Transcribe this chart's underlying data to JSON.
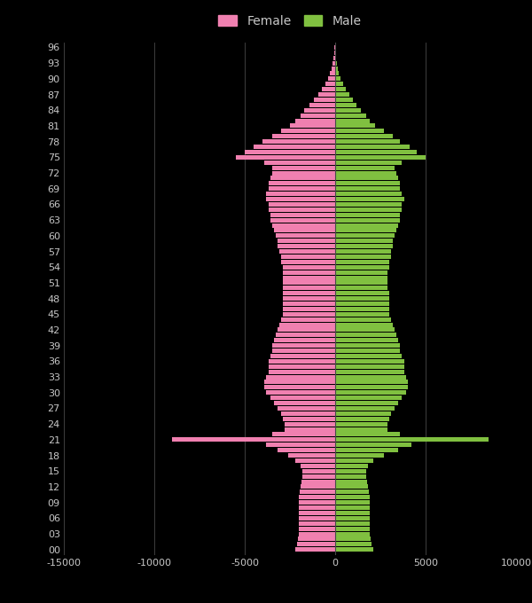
{
  "ages": [
    0,
    1,
    2,
    3,
    4,
    5,
    6,
    7,
    8,
    9,
    10,
    11,
    12,
    13,
    14,
    15,
    16,
    17,
    18,
    19,
    20,
    21,
    22,
    23,
    24,
    25,
    26,
    27,
    28,
    29,
    30,
    31,
    32,
    33,
    34,
    35,
    36,
    37,
    38,
    39,
    40,
    41,
    42,
    43,
    44,
    45,
    46,
    47,
    48,
    49,
    50,
    51,
    52,
    53,
    54,
    55,
    56,
    57,
    58,
    59,
    60,
    61,
    62,
    63,
    64,
    65,
    66,
    67,
    68,
    69,
    70,
    71,
    72,
    73,
    74,
    75,
    76,
    77,
    78,
    79,
    80,
    81,
    82,
    83,
    84,
    85,
    86,
    87,
    88,
    89,
    90,
    91,
    92,
    93,
    94,
    95,
    96
  ],
  "female": [
    -2200,
    -2100,
    -2050,
    -2000,
    -2000,
    -2000,
    -2000,
    -2000,
    -2000,
    -2000,
    -2000,
    -1950,
    -1900,
    -1850,
    -1800,
    -1800,
    -1900,
    -2200,
    -2600,
    -3200,
    -3800,
    -9000,
    -3500,
    -2800,
    -2800,
    -2900,
    -3000,
    -3200,
    -3400,
    -3600,
    -3800,
    -3900,
    -3900,
    -3800,
    -3700,
    -3700,
    -3700,
    -3600,
    -3500,
    -3500,
    -3400,
    -3300,
    -3200,
    -3100,
    -3000,
    -2900,
    -2900,
    -2900,
    -2900,
    -2900,
    -2900,
    -2900,
    -2900,
    -2900,
    -2900,
    -3000,
    -3000,
    -3100,
    -3200,
    -3200,
    -3300,
    -3400,
    -3500,
    -3600,
    -3600,
    -3700,
    -3700,
    -3800,
    -3800,
    -3700,
    -3700,
    -3600,
    -3500,
    -3500,
    -3900,
    -5500,
    -5000,
    -4500,
    -4000,
    -3500,
    -3000,
    -2500,
    -2200,
    -1900,
    -1700,
    -1400,
    -1200,
    -950,
    -750,
    -550,
    -380,
    -270,
    -210,
    -160,
    -110,
    -70,
    -40
  ],
  "male": [
    2100,
    2000,
    1950,
    1900,
    1900,
    1900,
    1900,
    1900,
    1900,
    1900,
    1900,
    1850,
    1800,
    1750,
    1700,
    1700,
    1800,
    2100,
    2700,
    3500,
    4200,
    8500,
    3600,
    2900,
    2900,
    3000,
    3100,
    3300,
    3500,
    3700,
    3900,
    4000,
    4000,
    3900,
    3800,
    3800,
    3800,
    3700,
    3600,
    3600,
    3500,
    3400,
    3300,
    3200,
    3100,
    3000,
    3000,
    3000,
    3000,
    3000,
    2900,
    2900,
    2900,
    2900,
    3000,
    3000,
    3100,
    3100,
    3200,
    3200,
    3300,
    3400,
    3500,
    3600,
    3600,
    3700,
    3700,
    3800,
    3700,
    3600,
    3600,
    3500,
    3400,
    3300,
    3700,
    5000,
    4500,
    4100,
    3600,
    3200,
    2700,
    2200,
    1900,
    1700,
    1400,
    1200,
    1000,
    800,
    600,
    430,
    280,
    190,
    140,
    100,
    70,
    50,
    30
  ],
  "female_color": "#f080b0",
  "male_color": "#80c040",
  "bg_color": "#000000",
  "text_color": "#c8c8c8",
  "grid_color": "#484848",
  "bar_height": 0.85,
  "xlim_min": -15000,
  "xlim_max": 10000,
  "xticks": [
    -15000,
    -10000,
    -5000,
    0,
    5000,
    10000
  ],
  "legend_female": "Female",
  "legend_male": "Male"
}
